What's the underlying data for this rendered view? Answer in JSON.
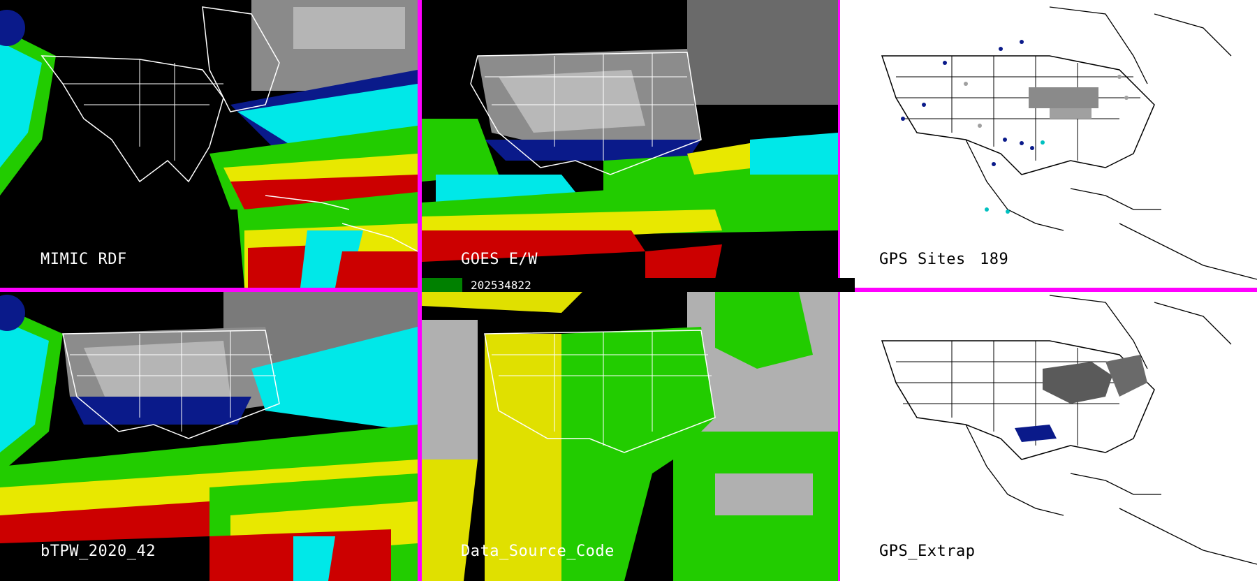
{
  "panels": [
    {
      "id": "mimic",
      "label": "MIMIC RDF"
    },
    {
      "id": "goes",
      "label": "GOES E/W"
    },
    {
      "id": "gps-sites",
      "label": "GPS Sites",
      "count": "189"
    },
    {
      "id": "btpw",
      "label": "bTPW_2020_42"
    },
    {
      "id": "data-source",
      "label": "Data_Source_Code"
    },
    {
      "id": "gps-extrap",
      "label": "GPS_Extrap"
    }
  ],
  "timestamp": "202534822",
  "colors": {
    "border": "#ff00ff",
    "moist_red": "#cc0000",
    "moist_yellow": "#e8e800",
    "moist_green": "#22cc00",
    "moist_cyan": "#00e8e8",
    "moist_blue": "#0a1a8a",
    "source_gray": "#b0b0b0",
    "source_yellow": "#e0e000",
    "source_green": "#22cc00"
  }
}
